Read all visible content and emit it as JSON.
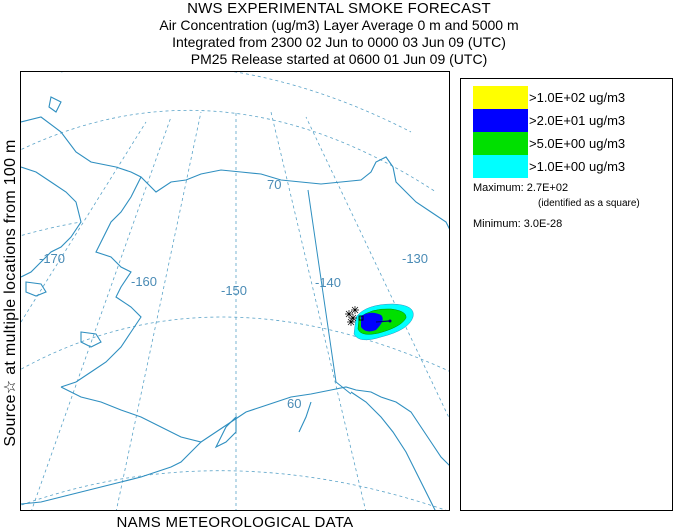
{
  "header": {
    "title": "NWS EXPERIMENTAL SMOKE FORECAST",
    "line2": "Air Concentration (ug/m3) Layer Average    0 m and  5000 m",
    "line3": "Integrated from 2300 02 Jun to 0000 03 Jun 09 (UTC)",
    "line4": "PM25 Release started at 0600 01 Jun 09 (UTC)"
  },
  "side_label": "Source☆  at multiple locations   from   100 m",
  "footer": "NAMS METEOROLOGICAL DATA",
  "map": {
    "longitude_labels": [
      "-170",
      "-160",
      "-150",
      "-140",
      "-130"
    ],
    "latitude_labels": [
      "70",
      "60"
    ],
    "colors": {
      "coastline": "#2f8fc0",
      "graticule": "#5aa3c8",
      "border": "#2f8fc0",
      "source_marker": "#000000"
    }
  },
  "legend": {
    "items": [
      {
        "label": ">1.0E+02 ug/m3",
        "color": "#ffff00"
      },
      {
        "label": ">2.0E+01 ug/m3",
        "color": "#0000ff"
      },
      {
        "label": ">5.0E+00 ug/m3",
        "color": "#00e000"
      },
      {
        "label": ">1.0E+00 ug/m3",
        "color": "#00ffff"
      }
    ],
    "maximum_label": "Maximum: 2.7E+02",
    "maximum_note": "(identified as a square)",
    "minimum_label": "Minimum: 3.0E-28"
  }
}
